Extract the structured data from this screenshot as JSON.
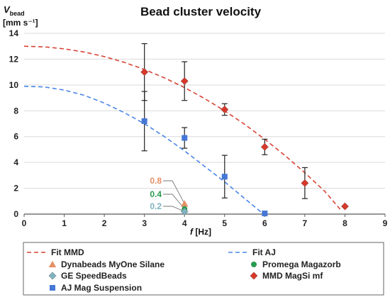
{
  "chart_data": {
    "type": "scatter",
    "title": "Bead cluster velocity",
    "ylabel": {
      "symbol": "V",
      "subscript": "bead",
      "unit": "[mm s⁻¹]"
    },
    "xlabel": {
      "symbol": "f",
      "unit": "[Hz]"
    },
    "xlim": [
      0,
      9
    ],
    "ylim": [
      0,
      14
    ],
    "xticks": [
      "0",
      "1",
      "2",
      "3",
      "4",
      "5",
      "6",
      "7",
      "8",
      "9"
    ],
    "yticks": [
      "0",
      "2",
      "4",
      "6",
      "8",
      "10",
      "12",
      "14"
    ],
    "grid": "horizontal",
    "legend_position": "bottom",
    "fits": [
      {
        "name": "Fit MMD",
        "color": "#d94335",
        "style": "dashed",
        "x": [
          0,
          0.5,
          1,
          1.5,
          2,
          2.5,
          3,
          3.5,
          4,
          4.5,
          5,
          5.5,
          6,
          6.5,
          7,
          7.5,
          7.9
        ],
        "y": [
          13.0,
          12.95,
          12.8,
          12.55,
          12.2,
          11.75,
          11.2,
          10.55,
          9.8,
          8.95,
          8.0,
          6.95,
          5.8,
          4.55,
          3.2,
          1.75,
          0.3
        ]
      },
      {
        "name": "Fit AJ",
        "color": "#4a86e8",
        "style": "dashed",
        "x": [
          0,
          0.5,
          1,
          1.5,
          2,
          2.5,
          3,
          3.5,
          4,
          4.5,
          5,
          5.5,
          5.95
        ],
        "y": [
          9.9,
          9.85,
          9.6,
          9.2,
          8.6,
          7.85,
          7.0,
          6.0,
          4.9,
          3.7,
          2.5,
          1.2,
          0.05
        ]
      }
    ],
    "series": [
      {
        "name": "Dynabeads MyOne Silane",
        "marker": "triangle",
        "color": "#e69066",
        "points": [
          {
            "x": 4,
            "y": 0.8
          }
        ]
      },
      {
        "name": "Promega Magazorb",
        "marker": "circle",
        "color": "#2a9b4f",
        "points": [
          {
            "x": 4,
            "y": 0.4
          }
        ]
      },
      {
        "name": "GE SpeedBeads",
        "marker": "diamond",
        "color": "#7fb3c0",
        "points": [
          {
            "x": 4,
            "y": 0.2
          }
        ]
      },
      {
        "name": "MMD MagSi mf",
        "marker": "diamond",
        "color": "#d7382a",
        "points": [
          {
            "x": 3,
            "y": 11.0,
            "err": 2.2
          },
          {
            "x": 4,
            "y": 10.3,
            "err": 1.5
          },
          {
            "x": 5,
            "y": 8.1,
            "err": 0.45
          },
          {
            "x": 6,
            "y": 5.2,
            "err": 0.6
          },
          {
            "x": 7,
            "y": 2.4,
            "err": 1.2
          },
          {
            "x": 8,
            "y": 0.6,
            "err": 0
          }
        ]
      },
      {
        "name": "AJ Mag Suspension",
        "marker": "square",
        "color": "#4577d6",
        "points": [
          {
            "x": 3,
            "y": 7.2,
            "err": 2.3
          },
          {
            "x": 4,
            "y": 5.9,
            "err": 0.8
          },
          {
            "x": 5,
            "y": 2.9,
            "err": 1.65
          },
          {
            "x": 6,
            "y": 0.05,
            "err": 0
          }
        ]
      }
    ],
    "annotations": [
      {
        "text": "0.8",
        "color": "#e69066",
        "target_x": 4,
        "target_y": 0.8
      },
      {
        "text": "0.4",
        "color": "#2a9b4f",
        "target_x": 4,
        "target_y": 0.4
      },
      {
        "text": "0.2",
        "color": "#7fb3c0",
        "target_x": 4,
        "target_y": 0.2
      }
    ],
    "legend": [
      {
        "label": "Fit MMD",
        "kind": "line",
        "color": "#d94335"
      },
      {
        "label": "Fit AJ",
        "kind": "line",
        "color": "#4a86e8"
      },
      {
        "label": "Dynabeads MyOne Silane",
        "kind": "triangle",
        "color": "#e69066"
      },
      {
        "label": "Promega Magazorb",
        "kind": "circle",
        "color": "#2a9b4f"
      },
      {
        "label": "GE SpeedBeads",
        "kind": "diamond",
        "color": "#7fb3c0"
      },
      {
        "label": "MMD MagSi mf",
        "kind": "diamond",
        "color": "#d7382a"
      },
      {
        "label": "AJ Mag Suspension",
        "kind": "square",
        "color": "#4577d6"
      }
    ]
  }
}
